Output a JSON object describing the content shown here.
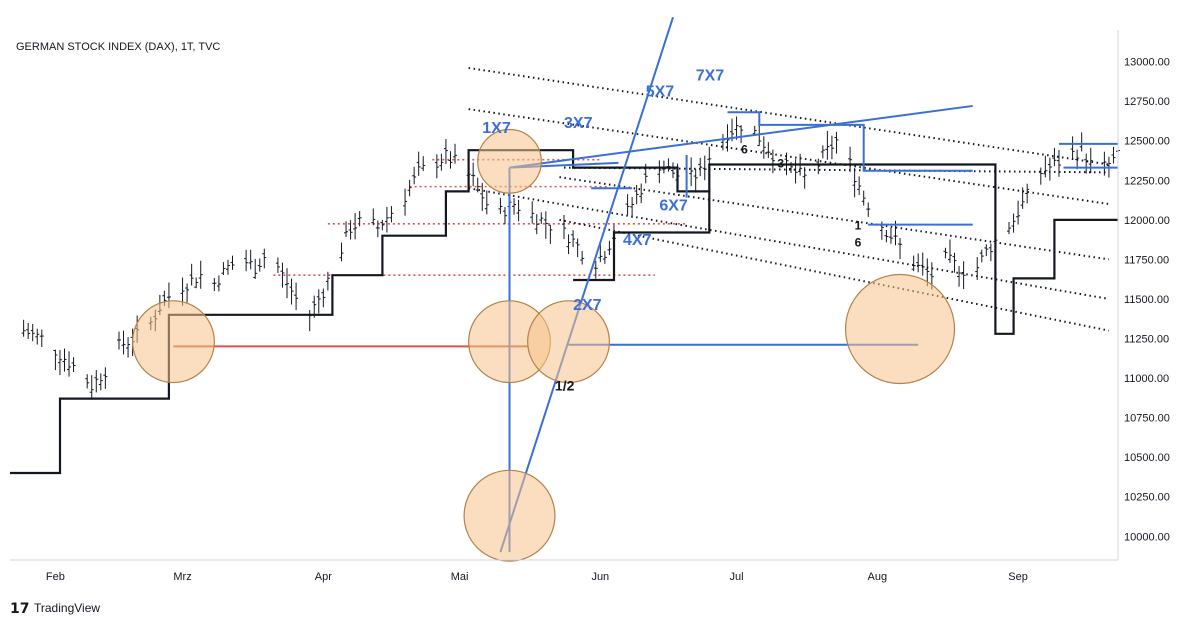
{
  "chart_data": {
    "type": "bar",
    "title": "GERMAN STOCK INDEX (DAX), 1T, TVC",
    "brand": "TradingView",
    "x_unit": "day index (0 = 1 Feb 2022)",
    "x_range": [
      -3,
      241
    ],
    "y_range": [
      9850,
      13200
    ],
    "price_ticks": [
      "10000.00",
      "10250.00",
      "10500.00",
      "10750.00",
      "11000.00",
      "11250.00",
      "11500.00",
      "11750.00",
      "12000.00",
      "12250.00",
      "12500.00",
      "12750.00",
      "13000.00"
    ],
    "month_labels": [
      {
        "label": "Feb",
        "x": 7
      },
      {
        "label": "Mrz",
        "x": 35
      },
      {
        "label": "Apr",
        "x": 66
      },
      {
        "label": "Mai",
        "x": 96
      },
      {
        "label": "Jun",
        "x": 127
      },
      {
        "label": "Jul",
        "x": 157
      },
      {
        "label": "Aug",
        "x": 188
      },
      {
        "label": "Sep",
        "x": 219
      }
    ],
    "price_points": [
      [
        0,
        11300
      ],
      [
        4,
        11250
      ],
      [
        8,
        11150
      ],
      [
        12,
        11050
      ],
      [
        15,
        10950
      ],
      [
        18,
        11050
      ],
      [
        21,
        11200
      ],
      [
        24,
        11250
      ],
      [
        27,
        11300
      ],
      [
        30,
        11450
      ],
      [
        33,
        11550
      ],
      [
        36,
        11600
      ],
      [
        39,
        11650
      ],
      [
        42,
        11600
      ],
      [
        45,
        11700
      ],
      [
        48,
        11750
      ],
      [
        51,
        11700
      ],
      [
        54,
        11800
      ],
      [
        57,
        11650
      ],
      [
        60,
        11500
      ],
      [
        63,
        11400
      ],
      [
        66,
        11550
      ],
      [
        69,
        11750
      ],
      [
        72,
        11950
      ],
      [
        75,
        12000
      ],
      [
        78,
        11950
      ],
      [
        81,
        12050
      ],
      [
        84,
        12150
      ],
      [
        87,
        12300
      ],
      [
        90,
        12350
      ],
      [
        93,
        12400
      ],
      [
        96,
        12350
      ],
      [
        99,
        12250
      ],
      [
        102,
        12100
      ],
      [
        105,
        12050
      ],
      [
        108,
        12100
      ],
      [
        111,
        12050
      ],
      [
        114,
        12000
      ],
      [
        117,
        11950
      ],
      [
        120,
        11900
      ],
      [
        123,
        11800
      ],
      [
        125,
        11700
      ],
      [
        128,
        11800
      ],
      [
        131,
        11950
      ],
      [
        134,
        12100
      ],
      [
        137,
        12250
      ],
      [
        140,
        12350
      ],
      [
        143,
        12300
      ],
      [
        146,
        12250
      ],
      [
        149,
        12300
      ],
      [
        152,
        12450
      ],
      [
        155,
        12550
      ],
      [
        158,
        12600
      ],
      [
        161,
        12550
      ],
      [
        164,
        12450
      ],
      [
        167,
        12350
      ],
      [
        170,
        12300
      ],
      [
        173,
        12250
      ],
      [
        176,
        12400
      ],
      [
        179,
        12500
      ],
      [
        182,
        12350
      ],
      [
        185,
        12150
      ],
      [
        188,
        12000
      ],
      [
        191,
        11900
      ],
      [
        194,
        11800
      ],
      [
        197,
        11700
      ],
      [
        200,
        11650
      ],
      [
        203,
        11750
      ],
      [
        206,
        11700
      ],
      [
        209,
        11650
      ],
      [
        212,
        11800
      ],
      [
        215,
        11900
      ],
      [
        218,
        12000
      ],
      [
        221,
        12150
      ],
      [
        224,
        12300
      ],
      [
        227,
        12350
      ],
      [
        230,
        12400
      ],
      [
        233,
        12450
      ],
      [
        236,
        12300
      ],
      [
        239,
        12350
      ],
      [
        241,
        12400
      ]
    ],
    "step_line": [
      [
        -3,
        10400
      ],
      [
        8,
        10400
      ],
      [
        8,
        10870
      ],
      [
        32,
        10870
      ],
      [
        32,
        11400
      ],
      [
        68,
        11400
      ],
      [
        68,
        11650
      ],
      [
        79,
        11650
      ],
      [
        79,
        11900
      ],
      [
        93,
        11900
      ],
      [
        93,
        12180
      ],
      [
        98,
        12180
      ],
      [
        98,
        12440
      ],
      [
        121,
        12440
      ],
      [
        121,
        12330
      ],
      [
        144,
        12330
      ],
      [
        144,
        12180
      ],
      [
        151,
        12180
      ],
      [
        151,
        12350
      ],
      [
        214,
        12350
      ],
      [
        214,
        11280
      ],
      [
        218,
        11280
      ],
      [
        218,
        11630
      ],
      [
        227,
        11630
      ],
      [
        227,
        12000
      ],
      [
        241,
        12000
      ]
    ],
    "step_segments": [
      [
        [
          121,
          11620
        ],
        [
          130,
          11620
        ],
        [
          130,
          11920
        ],
        [
          151,
          11920
        ],
        [
          151,
          12180
        ]
      ]
    ],
    "trend_lines": [
      {
        "from": [
          98,
          12960
        ],
        "to": [
          239,
          12350
        ],
        "style": "dotted",
        "color": "#131722"
      },
      {
        "from": [
          98,
          12700
        ],
        "to": [
          239,
          12100
        ],
        "style": "dotted",
        "color": "#131722"
      },
      {
        "from": [
          98,
          12200
        ],
        "to": [
          239,
          11500
        ],
        "style": "dotted",
        "color": "#131722"
      },
      {
        "from": [
          119,
          12330
        ],
        "to": [
          239,
          12300
        ],
        "style": "dotted",
        "color": "#131722"
      },
      {
        "from": [
          118,
          12270
        ],
        "to": [
          239,
          11750
        ],
        "style": "dotted",
        "color": "#131722"
      },
      {
        "from": [
          118,
          12000
        ],
        "to": [
          239,
          11300
        ],
        "style": "dotted",
        "color": "#131722"
      }
    ],
    "fan_lines": [
      {
        "from": [
          105,
          9900
        ],
        "to": [
          143,
          13280
        ]
      },
      {
        "from": [
          107,
          12330
        ],
        "to": [
          209,
          12720
        ]
      },
      {
        "from": [
          107,
          12330
        ],
        "to": [
          131,
          12360
        ]
      }
    ],
    "blue_segments": [
      [
        [
          107,
          9900
        ],
        [
          107,
          12330
        ]
      ],
      [
        [
          120,
          11210
        ],
        [
          197,
          11210
        ]
      ],
      [
        [
          155,
          12680
        ],
        [
          162,
          12680
        ],
        [
          162,
          12600
        ],
        [
          185,
          12600
        ],
        [
          185,
          12310
        ],
        [
          209,
          12310
        ]
      ],
      [
        [
          186,
          11970
        ],
        [
          209,
          11970
        ]
      ],
      [
        [
          228,
          12480
        ],
        [
          241,
          12480
        ]
      ],
      [
        [
          229,
          12330
        ],
        [
          241,
          12330
        ]
      ],
      [
        [
          125,
          12200
        ],
        [
          134,
          12200
        ]
      ],
      [
        [
          146,
          12410
        ],
        [
          146,
          12140
        ]
      ]
    ],
    "red_line": {
      "from": [
        33,
        11200
      ],
      "to": [
        111,
        11200
      ]
    },
    "red_dotted_levels": [
      {
        "y": 12380,
        "x0": 90,
        "x1": 127
      },
      {
        "y": 12210,
        "x0": 85,
        "x1": 129
      },
      {
        "y": 11975,
        "x0": 67,
        "x1": 146
      },
      {
        "y": 11650,
        "x0": 55,
        "x1": 139
      }
    ],
    "circles": [
      {
        "x": 33,
        "y": 11230,
        "r": 9
      },
      {
        "x": 107,
        "y": 12370,
        "r": 7
      },
      {
        "x": 107,
        "y": 11230,
        "r": 9
      },
      {
        "x": 120,
        "y": 11230,
        "r": 9
      },
      {
        "x": 107,
        "y": 10130,
        "r": 10
      },
      {
        "x": 193,
        "y": 11310,
        "r": 12
      }
    ],
    "annotations": [
      {
        "text": "1X7",
        "x": 101,
        "y": 12550,
        "kind": "blue"
      },
      {
        "text": "3X7",
        "x": 119,
        "y": 12580,
        "kind": "blue"
      },
      {
        "text": "5X7",
        "x": 137,
        "y": 12780,
        "kind": "blue"
      },
      {
        "text": "7X7",
        "x": 148,
        "y": 12880,
        "kind": "blue"
      },
      {
        "text": "6X7",
        "x": 140,
        "y": 12060,
        "kind": "blue"
      },
      {
        "text": "4X7",
        "x": 132,
        "y": 11840,
        "kind": "blue"
      },
      {
        "text": "2X7",
        "x": 121,
        "y": 11430,
        "kind": "blue"
      },
      {
        "text": "1/2",
        "x": 117,
        "y": 10920,
        "kind": "black"
      },
      {
        "text": "6",
        "x": 158,
        "y": 12420,
        "kind": "small"
      },
      {
        "text": "3",
        "x": 166,
        "y": 12330,
        "kind": "small"
      },
      {
        "text": "1",
        "x": 183,
        "y": 11940,
        "kind": "small"
      },
      {
        "text": "6",
        "x": 183,
        "y": 11830,
        "kind": "small"
      }
    ]
  }
}
